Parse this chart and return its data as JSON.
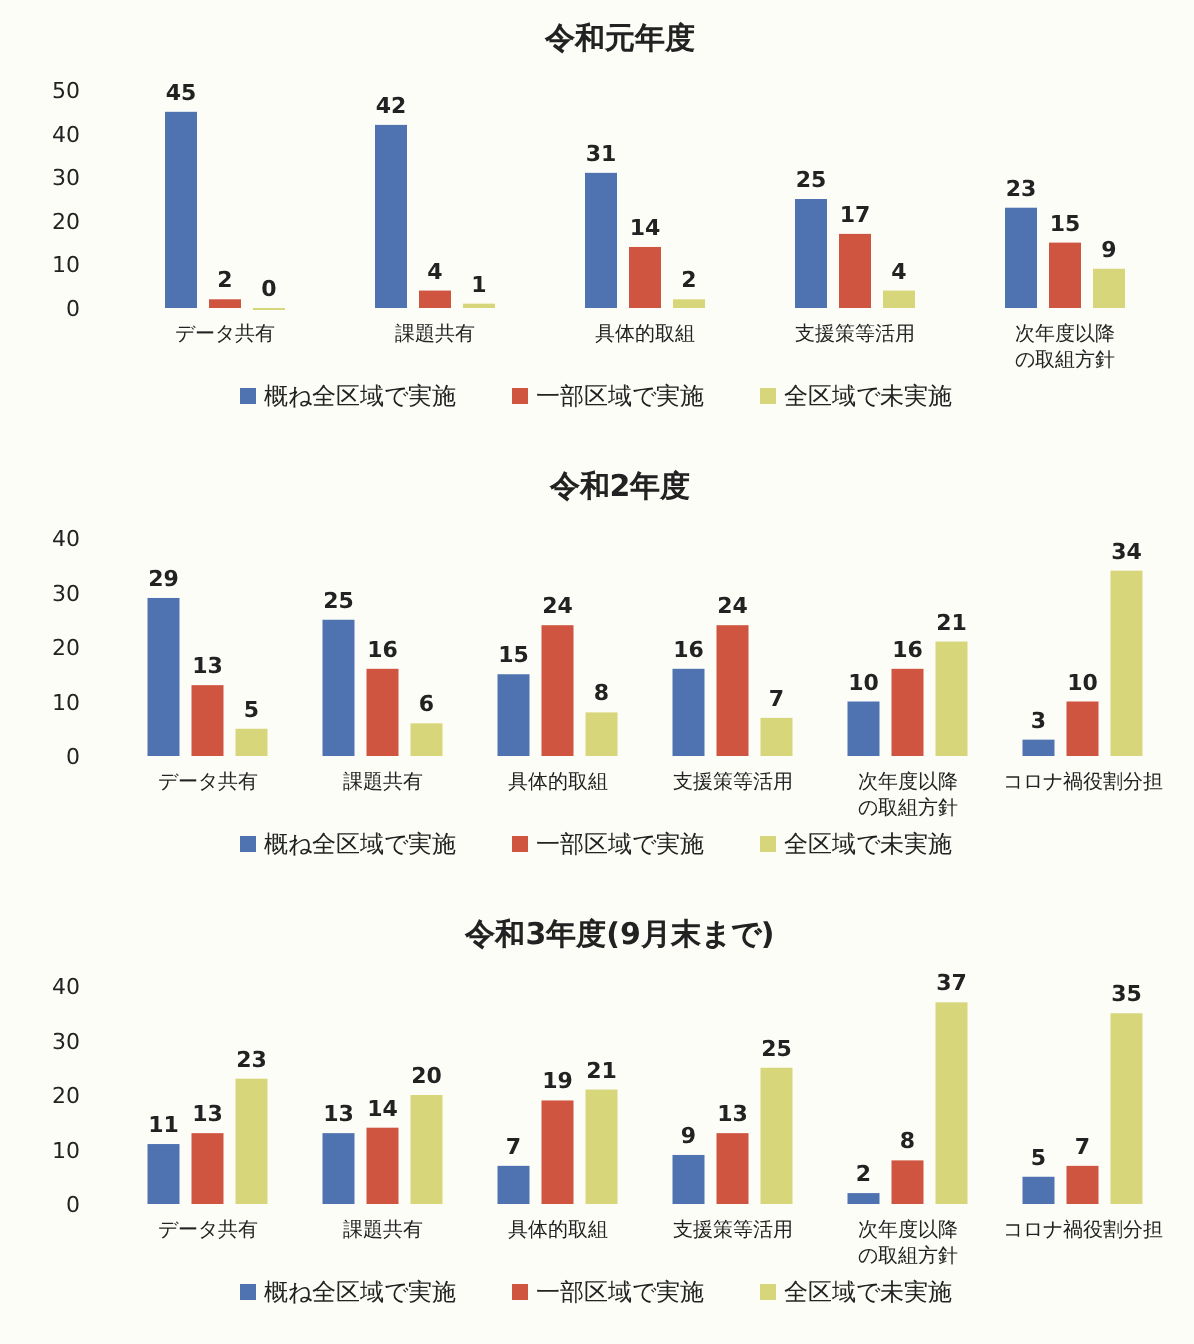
{
  "chart_data": [
    {
      "type": "bar",
      "title": "令和元年度",
      "categories": [
        "データ共有",
        "課題共有",
        "具体的取組",
        "支援策等活用",
        "次年度以降の取組方針"
      ],
      "ylim": [
        0,
        50
      ],
      "yticks": [
        0,
        10,
        20,
        30,
        40,
        50
      ],
      "data_labels": true,
      "legend": "bottom",
      "grid": false,
      "series": [
        {
          "name": "概ね全区域で実施",
          "color": "#4f72b0",
          "values": [
            45,
            42,
            31,
            25,
            23
          ]
        },
        {
          "name": "一部区域で実施",
          "color": "#cf5540",
          "values": [
            2,
            4,
            14,
            17,
            15
          ]
        },
        {
          "name": "全区域で未実施",
          "color": "#d8d67a",
          "values": [
            0,
            1,
            2,
            4,
            9
          ]
        }
      ]
    },
    {
      "type": "bar",
      "title": "令和2年度",
      "categories": [
        "データ共有",
        "課題共有",
        "具体的取組",
        "支援策等活用",
        "次年度以降の取組方針",
        "コロナ禍役割分担"
      ],
      "ylim": [
        0,
        40
      ],
      "yticks": [
        0,
        10,
        20,
        30,
        40
      ],
      "data_labels": true,
      "legend": "bottom",
      "grid": false,
      "series": [
        {
          "name": "概ね全区域で実施",
          "color": "#4f72b0",
          "values": [
            29,
            25,
            15,
            16,
            10,
            3
          ]
        },
        {
          "name": "一部区域で実施",
          "color": "#cf5540",
          "values": [
            13,
            16,
            24,
            24,
            16,
            10
          ]
        },
        {
          "name": "全区域で未実施",
          "color": "#d8d67a",
          "values": [
            5,
            6,
            8,
            7,
            21,
            34
          ]
        }
      ]
    },
    {
      "type": "bar",
      "title": "令和3年度(9月末まで)",
      "categories": [
        "データ共有",
        "課題共有",
        "具体的取組",
        "支援策等活用",
        "次年度以降の取組方針",
        "コロナ禍役割分担"
      ],
      "ylim": [
        0,
        40
      ],
      "yticks": [
        0,
        10,
        20,
        30,
        40
      ],
      "data_labels": true,
      "legend": "bottom",
      "grid": false,
      "series": [
        {
          "name": "概ね全区域で実施",
          "color": "#4f72b0",
          "values": [
            11,
            13,
            7,
            9,
            2,
            5
          ]
        },
        {
          "name": "一部区域で実施",
          "color": "#cf5540",
          "values": [
            13,
            14,
            19,
            13,
            8,
            7
          ]
        },
        {
          "name": "全区域で未実施",
          "color": "#d8d67a",
          "values": [
            23,
            20,
            21,
            25,
            37,
            35
          ]
        }
      ]
    }
  ]
}
